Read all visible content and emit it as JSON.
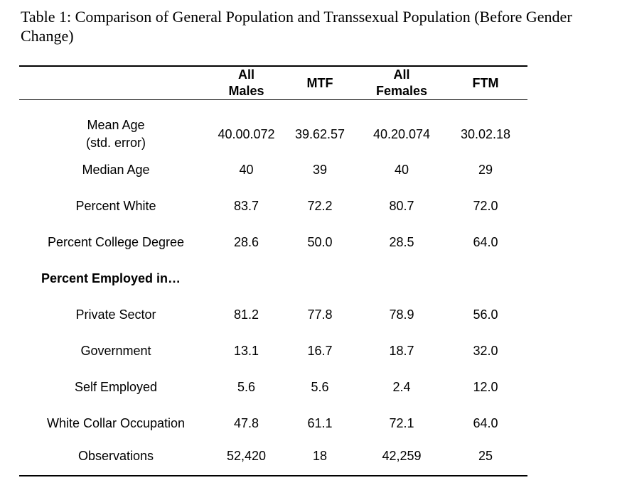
{
  "caption": "Table 1: Comparison of General Population and Transsexual Population (Before Gender Change)",
  "columns": [
    {
      "line1": "All",
      "line2": "Males"
    },
    {
      "line1": "MTF",
      "line2": ""
    },
    {
      "line1": "All",
      "line2": "Females"
    },
    {
      "line1": "FTM",
      "line2": ""
    }
  ],
  "rows": {
    "mean_age": {
      "label": "Mean Age",
      "values": [
        "40.0",
        "39.6",
        "40.2",
        "30.0"
      ]
    },
    "std_error": {
      "label": "(std. error)",
      "values": [
        "0.072",
        "2.57",
        "0.074",
        "2.18"
      ]
    },
    "median_age": {
      "label": "Median Age",
      "values": [
        "40",
        "39",
        "40",
        "29"
      ]
    },
    "percent_white": {
      "label": "Percent White",
      "values": [
        "83.7",
        "72.2",
        "80.7",
        "72.0"
      ]
    },
    "percent_college": {
      "label": "Percent College Degree",
      "values": [
        "28.6",
        "50.0",
        "28.5",
        "64.0"
      ]
    },
    "section_employed": {
      "label": "Percent Employed in…"
    },
    "private_sector": {
      "label": "Private Sector",
      "values": [
        "81.2",
        "77.8",
        "78.9",
        "56.0"
      ]
    },
    "government": {
      "label": "Government",
      "values": [
        "13.1",
        "16.7",
        "18.7",
        "32.0"
      ]
    },
    "self_employed": {
      "label": "Self Employed",
      "values": [
        "5.6",
        "5.6",
        "2.4",
        "12.0"
      ]
    },
    "white_collar": {
      "label": "White Collar Occupation",
      "values": [
        "47.8",
        "61.1",
        "72.1",
        "64.0"
      ]
    },
    "observations": {
      "label": "Observations",
      "values": [
        "52,420",
        "18",
        "42,259",
        "25"
      ]
    }
  }
}
